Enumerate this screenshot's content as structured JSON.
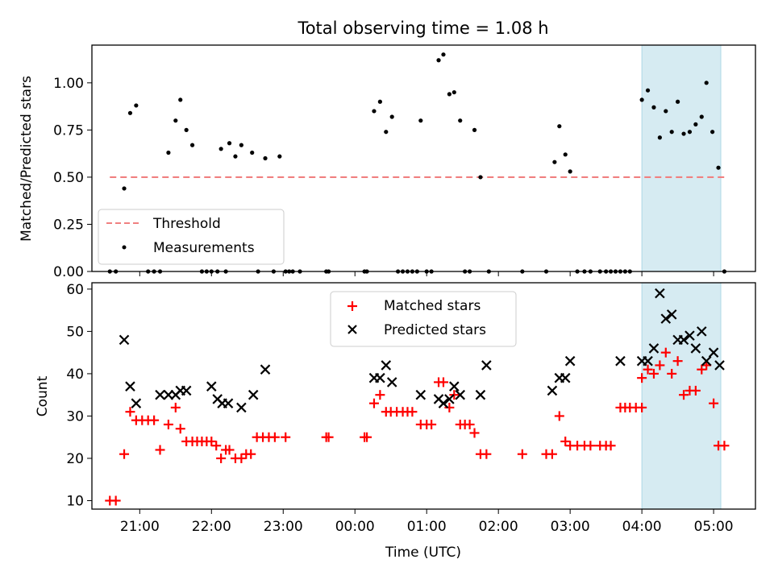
{
  "title": "Total observing time = 1.08 h",
  "colors": {
    "measurements": "#000000",
    "threshold": "#f08080",
    "matched": "#ff0000",
    "predicted": "#000000",
    "shaded": "#add8e6"
  },
  "chart_data": [
    {
      "type": "scatter",
      "panel": "top",
      "ylabel": "Matched/Predicted stars",
      "xlabel": "",
      "xlim": [
        "20:20",
        "05:35"
      ],
      "ylim": [
        0,
        1.2
      ],
      "yticks": [
        "0.00",
        "0.25",
        "0.50",
        "0.75",
        "1.00"
      ],
      "legend": {
        "position": "lower-left",
        "entries": [
          "Threshold",
          "Measurements"
        ]
      },
      "threshold": {
        "name": "Threshold",
        "value": 0.5,
        "x_range": [
          "20:35",
          "05:10"
        ]
      },
      "shaded_region": {
        "start": "04:00",
        "end": "05:06"
      },
      "series": [
        {
          "name": "Measurements",
          "points": [
            [
              "20:35",
              0
            ],
            [
              "20:40",
              0
            ],
            [
              "20:47",
              0.44
            ],
            [
              "20:52",
              0.84
            ],
            [
              "20:57",
              0.88
            ],
            [
              "21:07",
              0
            ],
            [
              "21:12",
              0
            ],
            [
              "21:17",
              0
            ],
            [
              "21:24",
              0.63
            ],
            [
              "21:30",
              0.8
            ],
            [
              "21:34",
              0.91
            ],
            [
              "21:39",
              0.75
            ],
            [
              "21:44",
              0.67
            ],
            [
              "21:52",
              0
            ],
            [
              "21:56",
              0
            ],
            [
              "22:00",
              0
            ],
            [
              "22:05",
              0
            ],
            [
              "22:08",
              0.65
            ],
            [
              "22:12",
              0
            ],
            [
              "22:15",
              0.68
            ],
            [
              "22:20",
              0.61
            ],
            [
              "22:25",
              0.67
            ],
            [
              "22:34",
              0.63
            ],
            [
              "22:39",
              0
            ],
            [
              "22:45",
              0.6
            ],
            [
              "22:52",
              0
            ],
            [
              "22:57",
              0.61
            ],
            [
              "23:02",
              0
            ],
            [
              "23:05",
              0
            ],
            [
              "23:08",
              0
            ],
            [
              "23:14",
              0
            ],
            [
              "23:36",
              0
            ],
            [
              "23:38",
              0
            ],
            [
              "00:08",
              0
            ],
            [
              "00:10",
              0
            ],
            [
              "00:16",
              0.85
            ],
            [
              "00:21",
              0.9
            ],
            [
              "00:26",
              0.74
            ],
            [
              "00:31",
              0.82
            ],
            [
              "00:36",
              0
            ],
            [
              "00:40",
              0
            ],
            [
              "00:44",
              0
            ],
            [
              "00:48",
              0
            ],
            [
              "00:52",
              0
            ],
            [
              "00:55",
              0.8
            ],
            [
              "01:00",
              0
            ],
            [
              "01:04",
              0
            ],
            [
              "01:10",
              1.12
            ],
            [
              "01:14",
              1.15
            ],
            [
              "01:19",
              0.94
            ],
            [
              "01:23",
              0.95
            ],
            [
              "01:28",
              0.8
            ],
            [
              "01:32",
              0
            ],
            [
              "01:36",
              0
            ],
            [
              "01:40",
              0.75
            ],
            [
              "01:45",
              0.5
            ],
            [
              "01:52",
              0
            ],
            [
              "02:20",
              0
            ],
            [
              "02:40",
              0
            ],
            [
              "02:47",
              0.58
            ],
            [
              "02:51",
              0.77
            ],
            [
              "02:56",
              0.62
            ],
            [
              "03:00",
              0.53
            ],
            [
              "03:06",
              0
            ],
            [
              "03:12",
              0
            ],
            [
              "03:17",
              0
            ],
            [
              "03:25",
              0
            ],
            [
              "03:30",
              0
            ],
            [
              "03:34",
              0
            ],
            [
              "03:38",
              0
            ],
            [
              "03:42",
              0
            ],
            [
              "03:46",
              0
            ],
            [
              "03:50",
              0
            ],
            [
              "04:00",
              0.91
            ],
            [
              "04:05",
              0.96
            ],
            [
              "04:10",
              0.87
            ],
            [
              "04:15",
              0.71
            ],
            [
              "04:20",
              0.85
            ],
            [
              "04:25",
              0.74
            ],
            [
              "04:30",
              0.9
            ],
            [
              "04:35",
              0.73
            ],
            [
              "04:40",
              0.74
            ],
            [
              "04:45",
              0.78
            ],
            [
              "04:50",
              0.82
            ],
            [
              "04:54",
              1.0
            ],
            [
              "04:59",
              0.74
            ],
            [
              "05:04",
              0.55
            ],
            [
              "05:09",
              0
            ]
          ]
        }
      ]
    },
    {
      "type": "scatter",
      "panel": "bottom",
      "ylabel": "Count",
      "xlabel": "Time (UTC)",
      "xlim": [
        "20:20",
        "05:35"
      ],
      "ylim": [
        8,
        61.5
      ],
      "yticks": [
        "10",
        "20",
        "30",
        "40",
        "50",
        "60"
      ],
      "xticks": [
        "21:00",
        "22:00",
        "23:00",
        "00:00",
        "01:00",
        "02:00",
        "03:00",
        "04:00",
        "05:00"
      ],
      "legend": {
        "position": "upper-center",
        "entries": [
          "Matched stars",
          "Predicted stars"
        ]
      },
      "shaded_region": {
        "start": "04:00",
        "end": "05:06"
      },
      "series": [
        {
          "name": "Matched stars",
          "marker": "plus",
          "points": [
            [
              "20:35",
              10
            ],
            [
              "20:40",
              10
            ],
            [
              "20:47",
              21
            ],
            [
              "20:52",
              31
            ],
            [
              "20:57",
              29
            ],
            [
              "21:02",
              29
            ],
            [
              "21:07",
              29
            ],
            [
              "21:12",
              29
            ],
            [
              "21:17",
              22
            ],
            [
              "21:24",
              28
            ],
            [
              "21:30",
              32
            ],
            [
              "21:34",
              27
            ],
            [
              "21:39",
              24
            ],
            [
              "21:44",
              24
            ],
            [
              "21:48",
              24
            ],
            [
              "21:52",
              24
            ],
            [
              "21:56",
              24
            ],
            [
              "22:00",
              24
            ],
            [
              "22:04",
              23
            ],
            [
              "22:08",
              20
            ],
            [
              "22:12",
              22
            ],
            [
              "22:15",
              22
            ],
            [
              "22:20",
              20
            ],
            [
              "22:25",
              20
            ],
            [
              "22:29",
              21
            ],
            [
              "22:33",
              21
            ],
            [
              "22:38",
              25
            ],
            [
              "22:43",
              25
            ],
            [
              "22:48",
              25
            ],
            [
              "22:53",
              25
            ],
            [
              "23:02",
              25
            ],
            [
              "23:36",
              25
            ],
            [
              "23:38",
              25
            ],
            [
              "00:08",
              25
            ],
            [
              "00:10",
              25
            ],
            [
              "00:16",
              33
            ],
            [
              "00:21",
              35
            ],
            [
              "00:26",
              31
            ],
            [
              "00:30",
              31
            ],
            [
              "00:35",
              31
            ],
            [
              "00:40",
              31
            ],
            [
              "00:44",
              31
            ],
            [
              "00:48",
              31
            ],
            [
              "00:55",
              28
            ],
            [
              "01:00",
              28
            ],
            [
              "01:04",
              28
            ],
            [
              "01:10",
              38
            ],
            [
              "01:14",
              38
            ],
            [
              "01:19",
              32
            ],
            [
              "01:23",
              35
            ],
            [
              "01:28",
              28
            ],
            [
              "01:32",
              28
            ],
            [
              "01:36",
              28
            ],
            [
              "01:40",
              26
            ],
            [
              "01:45",
              21
            ],
            [
              "01:50",
              21
            ],
            [
              "02:20",
              21
            ],
            [
              "02:40",
              21
            ],
            [
              "02:45",
              21
            ],
            [
              "02:51",
              30
            ],
            [
              "02:56",
              24
            ],
            [
              "03:00",
              23
            ],
            [
              "03:06",
              23
            ],
            [
              "03:12",
              23
            ],
            [
              "03:17",
              23
            ],
            [
              "03:25",
              23
            ],
            [
              "03:30",
              23
            ],
            [
              "03:34",
              23
            ],
            [
              "03:42",
              32
            ],
            [
              "03:46",
              32
            ],
            [
              "03:50",
              32
            ],
            [
              "03:55",
              32
            ],
            [
              "04:00",
              32
            ],
            [
              "04:00",
              39
            ],
            [
              "04:05",
              41
            ],
            [
              "04:10",
              40
            ],
            [
              "04:15",
              42
            ],
            [
              "04:20",
              45
            ],
            [
              "04:25",
              40
            ],
            [
              "04:30",
              43
            ],
            [
              "04:35",
              35
            ],
            [
              "04:40",
              36
            ],
            [
              "04:45",
              36
            ],
            [
              "04:50",
              41
            ],
            [
              "04:54",
              42
            ],
            [
              "05:00",
              33
            ],
            [
              "05:04",
              23
            ],
            [
              "05:09",
              23
            ]
          ]
        },
        {
          "name": "Predicted stars",
          "marker": "cross",
          "points": [
            [
              "20:47",
              48
            ],
            [
              "20:52",
              37
            ],
            [
              "20:57",
              33
            ],
            [
              "21:17",
              35
            ],
            [
              "21:24",
              35
            ],
            [
              "21:30",
              35
            ],
            [
              "21:34",
              36
            ],
            [
              "21:39",
              36
            ],
            [
              "22:00",
              37
            ],
            [
              "22:05",
              34
            ],
            [
              "22:09",
              33
            ],
            [
              "22:14",
              33
            ],
            [
              "22:25",
              32
            ],
            [
              "22:35",
              35
            ],
            [
              "22:45",
              41
            ],
            [
              "00:16",
              39
            ],
            [
              "00:21",
              39
            ],
            [
              "00:26",
              42
            ],
            [
              "00:31",
              38
            ],
            [
              "00:55",
              35
            ],
            [
              "01:10",
              34
            ],
            [
              "01:14",
              33
            ],
            [
              "01:19",
              34
            ],
            [
              "01:23",
              37
            ],
            [
              "01:28",
              35
            ],
            [
              "01:45",
              35
            ],
            [
              "01:50",
              42
            ],
            [
              "02:45",
              36
            ],
            [
              "02:51",
              39
            ],
            [
              "02:56",
              39
            ],
            [
              "03:00",
              43
            ],
            [
              "03:42",
              43
            ],
            [
              "04:00",
              43
            ],
            [
              "04:05",
              43
            ],
            [
              "04:10",
              46
            ],
            [
              "04:15",
              59
            ],
            [
              "04:20",
              53
            ],
            [
              "04:25",
              54
            ],
            [
              "04:30",
              48
            ],
            [
              "04:35",
              48
            ],
            [
              "04:40",
              49
            ],
            [
              "04:45",
              46
            ],
            [
              "04:50",
              50
            ],
            [
              "04:54",
              43
            ],
            [
              "05:00",
              45
            ],
            [
              "05:05",
              42
            ]
          ]
        }
      ]
    }
  ]
}
